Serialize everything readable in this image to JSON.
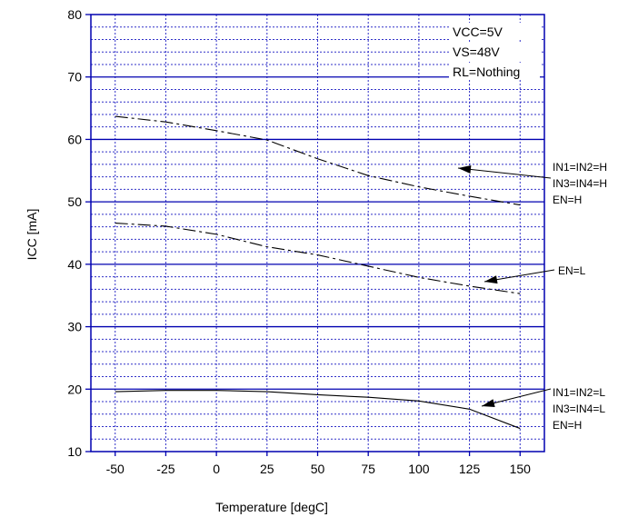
{
  "chart_data": {
    "type": "line",
    "title": "",
    "xlabel": "Temperature [degC]",
    "ylabel": "ICC [mA]",
    "xlim": [
      -62,
      162
    ],
    "ylim": [
      10,
      80
    ],
    "xticks": [
      -50,
      -25,
      0,
      25,
      50,
      75,
      100,
      125,
      150
    ],
    "yticks": [
      10,
      20,
      30,
      40,
      50,
      60,
      70,
      80
    ],
    "grid": true,
    "conditions": [
      "VCC=5V",
      "VS=48V",
      "RL=Nothing"
    ],
    "series": [
      {
        "label_lines": [
          "IN1=IN2=H",
          "IN3=IN4=H",
          "EN=H"
        ],
        "style": "dash-dot",
        "x": [
          -50,
          -25,
          0,
          25,
          50,
          75,
          100,
          125,
          150
        ],
        "y": [
          63.7,
          62.8,
          61.4,
          59.9,
          56.9,
          54.2,
          52.4,
          50.9,
          49.5
        ]
      },
      {
        "label_lines": [
          "EN=L"
        ],
        "style": "dash-dot",
        "x": [
          -50,
          -25,
          0,
          25,
          50,
          75,
          100,
          125,
          150
        ],
        "y": [
          46.6,
          46.1,
          44.8,
          42.8,
          41.5,
          39.7,
          37.9,
          36.5,
          35.3
        ]
      },
      {
        "label_lines": [
          "IN1=IN2=L",
          "IN3=IN4=L",
          "EN=H"
        ],
        "style": "solid",
        "x": [
          -50,
          -25,
          0,
          25,
          50,
          75,
          100,
          125,
          150
        ],
        "y": [
          19.6,
          19.8,
          19.8,
          19.6,
          19.1,
          18.7,
          18.1,
          16.8,
          13.7
        ]
      }
    ]
  }
}
